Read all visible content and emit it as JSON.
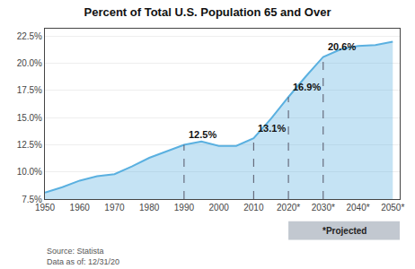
{
  "chart_data": {
    "type": "area",
    "title": "Percent of Total U.S. Population 65 and Over",
    "x": [
      1950,
      1955,
      1960,
      1965,
      1970,
      1975,
      1980,
      1985,
      1990,
      1995,
      2000,
      2005,
      2010,
      2015,
      2020,
      2025,
      2030,
      2035,
      2040,
      2045,
      2050
    ],
    "values": [
      8.1,
      8.6,
      9.2,
      9.6,
      9.8,
      10.5,
      11.3,
      11.9,
      12.5,
      12.8,
      12.4,
      12.4,
      13.1,
      14.9,
      16.9,
      18.8,
      20.6,
      21.3,
      21.6,
      21.7,
      22.0
    ],
    "color": "#5ab0e0",
    "xlim": [
      1950,
      2052
    ],
    "ylim": [
      7.5,
      23.2
    ],
    "xticks": [
      1950,
      1960,
      1970,
      1980,
      1990,
      2000,
      2010,
      {
        "value": 2020,
        "label": "2020*"
      },
      {
        "value": 2030,
        "label": "2030*"
      },
      {
        "value": 2040,
        "label": "2040*"
      },
      {
        "value": 2050,
        "label": "2050*"
      }
    ],
    "yticks": [
      {
        "value": 7.5,
        "label": "7.5%"
      },
      {
        "value": 10.0,
        "label": "10.0%"
      },
      {
        "value": 12.5,
        "label": "12.5%"
      },
      {
        "value": 15.0,
        "label": "15.0%"
      },
      {
        "value": 17.5,
        "label": "17.5%"
      },
      {
        "value": 20.0,
        "label": "20.0%"
      },
      {
        "value": 22.5,
        "label": "22.5%"
      }
    ],
    "grid": "y",
    "annotations": [
      {
        "x": 1990,
        "y": 12.5,
        "label": "12.5%"
      },
      {
        "x": 2010,
        "y": 13.1,
        "label": "13.1%"
      },
      {
        "x": 2020,
        "y": 16.9,
        "label": "16.9%"
      },
      {
        "x": 2030,
        "y": 20.6,
        "label": "20.6%"
      }
    ],
    "projected": {
      "label": "*Projected",
      "from": 2020
    },
    "source": "Source: Statista\nData as of: 12/31/20"
  }
}
